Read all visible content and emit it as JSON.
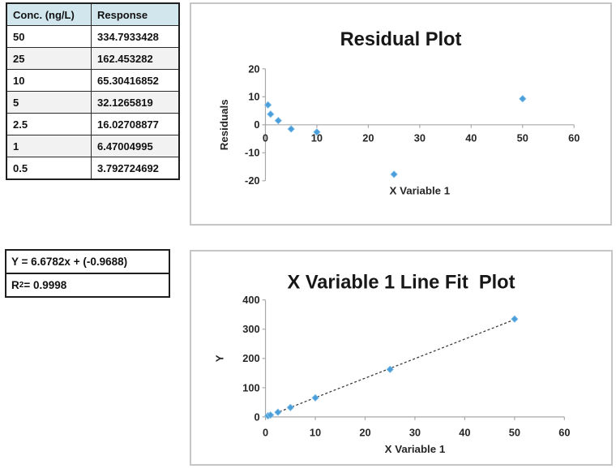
{
  "table": {
    "headers": [
      "Conc. (ng/L)",
      "Response"
    ],
    "rows": [
      [
        "50",
        "334.7933428"
      ],
      [
        "25",
        "162.453282"
      ],
      [
        "10",
        "65.30416852"
      ],
      [
        "5",
        "32.1265819"
      ],
      [
        "2.5",
        "16.02708877"
      ],
      [
        "1",
        "6.47004995"
      ],
      [
        "0.5",
        "3.792724692"
      ]
    ]
  },
  "equation_box": {
    "equation": "Y = 6.6782x + (-0.9688)",
    "r2_base": "R",
    "r2_sup": "2",
    "r2_rest": " = 0.9998"
  },
  "colors": {
    "marker": "#4A9EDA",
    "marker_edge": "#8CC4EA",
    "axis": "#a8a8a8",
    "trendline": "#3a3a3a",
    "table_header_bg": "#d2e6ee"
  },
  "chart_data": [
    {
      "type": "scatter",
      "title": "Residual Plot",
      "xlabel": "X Variable 1",
      "ylabel": "Residuals",
      "xlim": [
        0,
        60
      ],
      "ylim": [
        -20,
        20
      ],
      "xticks": [
        0,
        10,
        20,
        30,
        40,
        50,
        60
      ],
      "yticks": [
        -20,
        -10,
        0,
        10,
        20
      ],
      "grid": false,
      "legend": "none",
      "marker": "diamond",
      "points": [
        {
          "x": 0.5,
          "y": 7.1
        },
        {
          "x": 1,
          "y": 3.8
        },
        {
          "x": 2.5,
          "y": 1.5
        },
        {
          "x": 5,
          "y": -1.5
        },
        {
          "x": 10,
          "y": -2.6
        },
        {
          "x": 25,
          "y": -17.7
        },
        {
          "x": 50,
          "y": 9.3
        }
      ]
    },
    {
      "type": "scatter",
      "title": "X Variable 1 Line Fit  Plot",
      "xlabel": "X Variable 1",
      "ylabel": "Y",
      "xlim": [
        0,
        60
      ],
      "ylim": [
        0,
        400
      ],
      "xticks": [
        0,
        10,
        20,
        30,
        40,
        50,
        60
      ],
      "yticks": [
        0,
        100,
        200,
        300,
        400
      ],
      "grid": false,
      "legend": "none",
      "marker": "diamond",
      "points": [
        {
          "x": 0.5,
          "y": 3.792724692
        },
        {
          "x": 1,
          "y": 6.47004995
        },
        {
          "x": 2.5,
          "y": 16.02708877
        },
        {
          "x": 5,
          "y": 32.1265819
        },
        {
          "x": 10,
          "y": 65.30416852
        },
        {
          "x": 25,
          "y": 162.453282
        },
        {
          "x": 50,
          "y": 334.7933428
        }
      ],
      "trendline": {
        "style": "dashed",
        "slope": 6.6782,
        "intercept": -0.9688,
        "x_start": 0.3,
        "x_end": 50.2
      }
    }
  ]
}
